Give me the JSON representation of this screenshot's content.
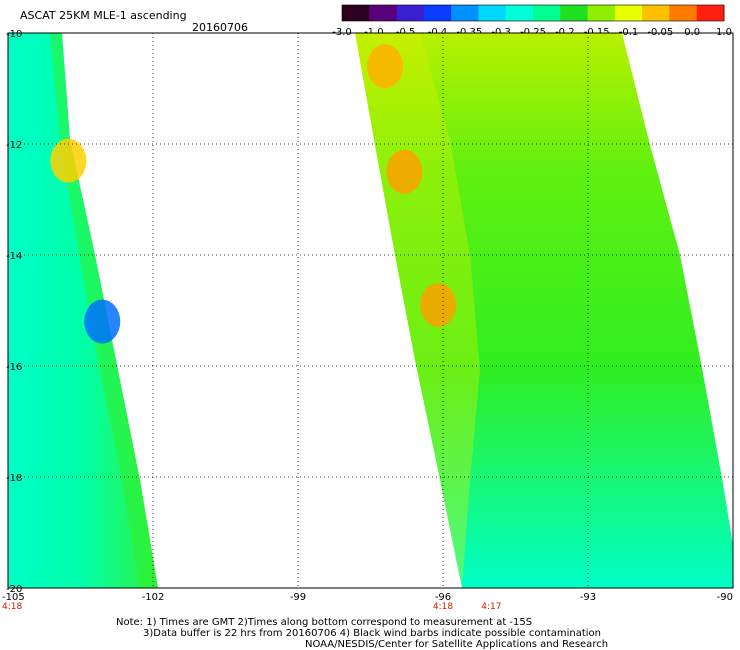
{
  "header": {
    "title": "ASCAT 25KM MLE-1 ascending",
    "date": "20160706"
  },
  "colorbar": {
    "labels": [
      "-3.0",
      "-1.0",
      "-0.5",
      "-0.4",
      "-0.35",
      "-0.3",
      "-0.25",
      "-0.2",
      "-0.15",
      "-0.1",
      "-0.05",
      "0.0",
      "1.0"
    ],
    "colors": [
      "#2a001e",
      "#5a007a",
      "#3a1fd0",
      "#0a3cff",
      "#0090ff",
      "#00d8ff",
      "#00ffd8",
      "#00ff90",
      "#20e020",
      "#8ef000",
      "#e8ff00",
      "#ffc000",
      "#ff7a00",
      "#ff2010"
    ]
  },
  "map": {
    "lat_labels": [
      "-10",
      "-12",
      "-14",
      "-16",
      "-18",
      "-20"
    ],
    "lon_labels": [
      "-105",
      "-102",
      "-99",
      "-96",
      "-93",
      "-90"
    ],
    "lon_range": [
      -105,
      -90
    ],
    "lat_range": [
      -10,
      -20
    ],
    "pass_times": [
      {
        "label": "4:18",
        "lon": -105
      },
      {
        "label": "4:18",
        "lon": -96
      },
      {
        "label": "4:17",
        "lon": -95
      }
    ],
    "swaths": [
      {
        "name": "west-swath",
        "base_color": "#00ffc0",
        "patches": [
          {
            "color": "#ffd000",
            "lat": -12.3,
            "lon": -103.75
          },
          {
            "color": "#0070ff",
            "lat": -15.2,
            "lon": -103.05
          }
        ]
      },
      {
        "name": "east-swath",
        "base_color": "#30f020",
        "patches": [
          {
            "color": "#ffb000",
            "lat": -10.6,
            "lon": -97.2
          },
          {
            "color": "#ffa000",
            "lat": -12.5,
            "lon": -96.8
          },
          {
            "color": "#ffa000",
            "lat": -14.9,
            "lon": -96.1
          }
        ]
      }
    ]
  },
  "footer": {
    "note_line1": "Note: 1) Times are GMT 2)Times along bottom correspond to measurement at -15S",
    "note_line2": "3)Data buffer is 22 hrs from 20160706 4) Black wind barbs indicate possible contamination",
    "credit": "NOAA/NESDIS/Center for Satellite Applications and Research"
  }
}
